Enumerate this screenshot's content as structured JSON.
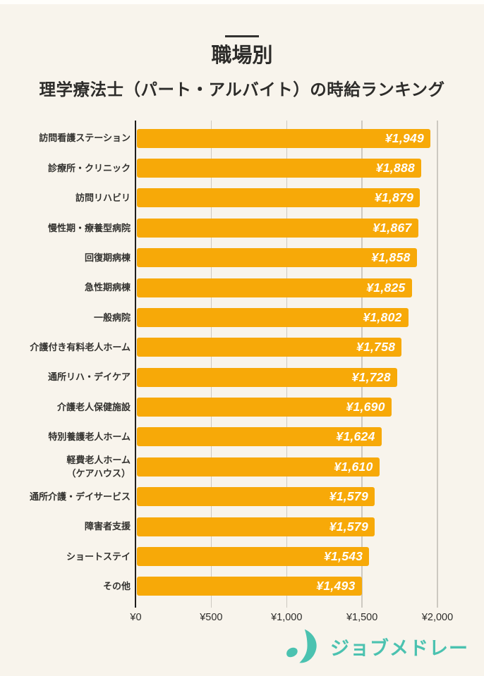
{
  "header": {
    "title": "職場別",
    "subtitle": "理学療法士（パート・アルバイト）の時給ランキング"
  },
  "chart_data": {
    "type": "bar",
    "orientation": "horizontal",
    "title": "職場別 理学療法士（パート・アルバイト）の時給ランキング",
    "xlabel": "",
    "ylabel": "",
    "xlim": [
      0,
      2000
    ],
    "grid": true,
    "categories": [
      "訪問看護ステーション",
      "診療所・クリニック",
      "訪問リハビリ",
      "慢性期・療養型病院",
      "回復期病棟",
      "急性期病棟",
      "一般病院",
      "介護付き有料老人ホーム",
      "通所リハ・デイケア",
      "介護老人保健施設",
      "特別養護老人ホーム",
      "軽費老人ホーム\n（ケアハウス）",
      "通所介護・デイサービス",
      "障害者支援",
      "ショートステイ",
      "その他"
    ],
    "values": [
      1949,
      1888,
      1879,
      1867,
      1858,
      1825,
      1802,
      1758,
      1728,
      1690,
      1624,
      1610,
      1579,
      1579,
      1543,
      1493
    ],
    "value_labels": [
      "¥1,949",
      "¥1,888",
      "¥1,879",
      "¥1,867",
      "¥1,858",
      "¥1,825",
      "¥1,802",
      "¥1,758",
      "¥1,728",
      "¥1,690",
      "¥1,624",
      "¥1,610",
      "¥1,579",
      "¥1,579",
      "¥1,543",
      "¥1,493"
    ],
    "x_tick_values": [
      0,
      500,
      1000,
      1500,
      2000
    ],
    "x_tick_labels": [
      "¥0",
      "¥500",
      "¥1,000",
      "¥1,500",
      "¥2,000"
    ],
    "colors": {
      "bar": "#f7a908",
      "value_label": "#ffffff",
      "background": "#f8f4ec",
      "gridline": "#cdc9c1",
      "axis": "#1e1d1b",
      "label_text": "#33322f"
    }
  },
  "footer": {
    "logo_text": "ジョブメドレー",
    "logo_color": "#4bc2b0",
    "logo_icon": "jobmedley-crescent-icon"
  }
}
